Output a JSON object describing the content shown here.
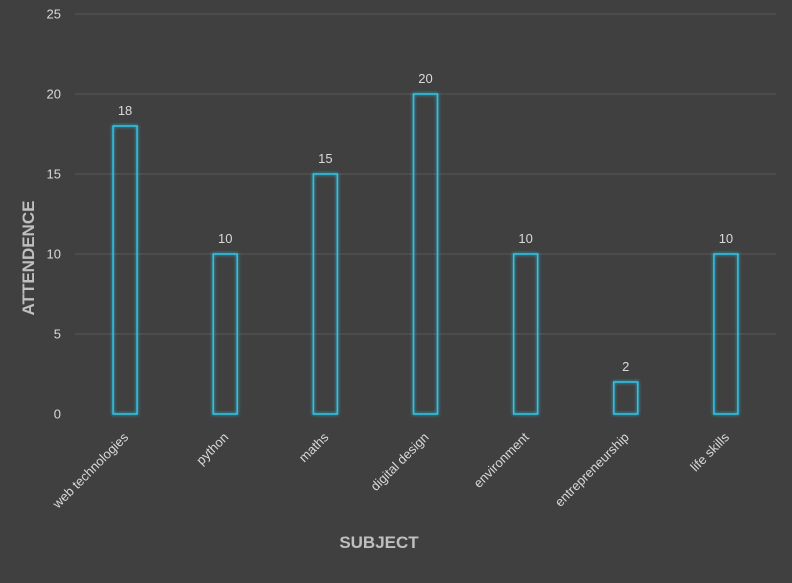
{
  "chart_data": {
    "type": "bar",
    "title": "",
    "xlabel": "SUBJECT",
    "ylabel": "ATTENDENCE",
    "categories": [
      "web technologies",
      "python",
      "maths",
      "digital design",
      "environment",
      "entrepreneurship",
      "life skills"
    ],
    "values": [
      18,
      10,
      15,
      20,
      10,
      2,
      10
    ],
    "data_labels": [
      "18",
      "10",
      "15",
      "20",
      "10",
      "2",
      "10"
    ],
    "ylim": [
      0,
      25
    ],
    "yticks": [
      0,
      5,
      10,
      15,
      20,
      25
    ],
    "ytick_labels": [
      "0",
      "5",
      "10",
      "15",
      "20",
      "25"
    ],
    "grid": true,
    "legend": "none",
    "colors": {
      "background": "#404040",
      "bar_outline": "#2ec4e6",
      "gridline": "#595959",
      "text": "#d9d9d9",
      "axis_title": "#bfbfbf"
    }
  }
}
